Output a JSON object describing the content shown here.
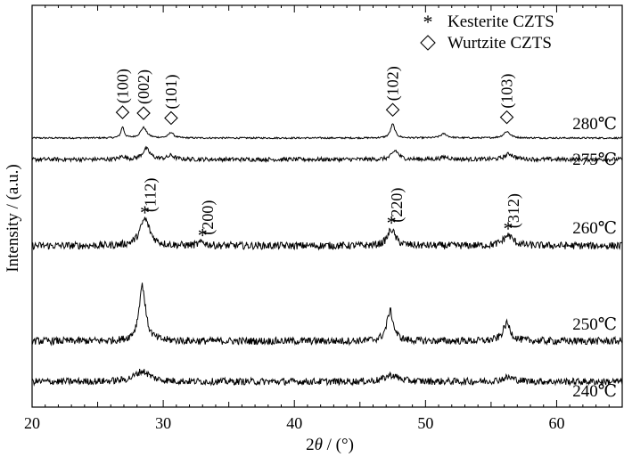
{
  "chart_data": {
    "type": "line",
    "title": "",
    "xlabel_prefix": "2",
    "xlabel_var": "θ",
    "xlabel_suffix": " / (°)",
    "ylabel": "Intensity / (a.u.)",
    "xlim": [
      20,
      65
    ],
    "x_ticks": [
      20,
      30,
      40,
      50,
      60
    ],
    "y_ticks_labeled": false,
    "grid": false,
    "line_color": "#000000",
    "legend": {
      "placement": "top-right",
      "entries": [
        {
          "marker": "*",
          "label": "Kesterite CZTS"
        },
        {
          "marker": "◇",
          "label": "Wurtzite  CZTS"
        }
      ]
    },
    "series": [
      {
        "name": "280℃",
        "baseline": 0.8,
        "noise": 0.35,
        "peaks": [
          {
            "x": 26.9,
            "h": 4.8,
            "w": 0.14
          },
          {
            "x": 28.5,
            "h": 4.5,
            "w": 0.28
          },
          {
            "x": 30.6,
            "h": 2.4,
            "w": 0.22
          },
          {
            "x": 47.5,
            "h": 6.0,
            "w": 0.2
          },
          {
            "x": 51.4,
            "h": 1.8,
            "w": 0.3
          },
          {
            "x": 56.2,
            "h": 2.8,
            "w": 0.3
          }
        ]
      },
      {
        "name": "275℃",
        "baseline": 0.4,
        "noise": 0.9,
        "peaks": [
          {
            "x": 26.9,
            "h": 1.4,
            "w": 0.2
          },
          {
            "x": 28.7,
            "h": 4.5,
            "w": 0.35
          },
          {
            "x": 30.6,
            "h": 1.6,
            "w": 0.3
          },
          {
            "x": 47.7,
            "h": 3.8,
            "w": 0.3
          },
          {
            "x": 51.5,
            "h": 1.0,
            "w": 0.4
          },
          {
            "x": 56.4,
            "h": 2.4,
            "w": 0.4
          }
        ]
      },
      {
        "name": "260℃",
        "baseline": 1.2,
        "noise": 1.6,
        "peaks": [
          {
            "x": 28.6,
            "h": 11.5,
            "w": 0.45
          },
          {
            "x": 33.0,
            "h": 1.5,
            "w": 0.3
          },
          {
            "x": 47.4,
            "h": 7.0,
            "w": 0.35
          },
          {
            "x": 56.3,
            "h": 4.5,
            "w": 0.45
          }
        ]
      },
      {
        "name": "250℃",
        "baseline": 1.2,
        "noise": 1.6,
        "peaks": [
          {
            "x": 28.4,
            "h": 24.0,
            "w": 0.3
          },
          {
            "x": 47.3,
            "h": 13.0,
            "w": 0.3
          },
          {
            "x": 56.2,
            "h": 7.5,
            "w": 0.35
          }
        ]
      },
      {
        "name": "240℃",
        "baseline": 1.0,
        "noise": 1.5,
        "peaks": [
          {
            "x": 28.4,
            "h": 4.5,
            "w": 0.7
          },
          {
            "x": 47.4,
            "h": 2.8,
            "w": 0.6
          },
          {
            "x": 56.3,
            "h": 1.8,
            "w": 0.6
          }
        ]
      }
    ],
    "annotations": [
      {
        "series": "280℃",
        "marker": "◇",
        "label": "(100)",
        "x": 26.9
      },
      {
        "series": "280℃",
        "marker": "◇",
        "label": "(002)",
        "x": 28.5
      },
      {
        "series": "280℃",
        "marker": "◇",
        "label": "(101)",
        "x": 30.6
      },
      {
        "series": "280℃",
        "marker": "◇",
        "label": "(102)",
        "x": 47.5
      },
      {
        "series": "280℃",
        "marker": "◇",
        "label": "(103)",
        "x": 56.2
      },
      {
        "series": "260℃",
        "marker": "*",
        "label": "(112)",
        "x": 28.6
      },
      {
        "series": "260℃",
        "marker": "*",
        "label": "(200)",
        "x": 33.0
      },
      {
        "series": "260℃",
        "marker": "*",
        "label": "(220)",
        "x": 47.4
      },
      {
        "series": "260℃",
        "marker": "*",
        "label": "(312)",
        "x": 56.3
      }
    ]
  }
}
